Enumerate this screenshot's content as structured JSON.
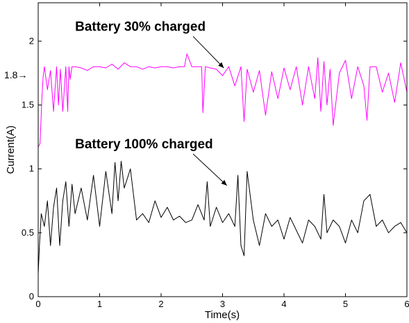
{
  "chart_data": {
    "type": "line",
    "title": "",
    "xlabel": "Time(s)",
    "ylabel": "Current(A)",
    "xlim": [
      0,
      6
    ],
    "ylim": [
      0,
      2.3
    ],
    "x_ticks": [
      0,
      1,
      2,
      3,
      4,
      5,
      6
    ],
    "x_tick_labels": [
      "0",
      "1",
      "2",
      "3",
      "4",
      "5",
      "6"
    ],
    "y_ticks": [
      0,
      0.5,
      1,
      1.5,
      2
    ],
    "y_tick_labels": [
      "0",
      "0.5",
      "1",
      "1.5",
      "2"
    ],
    "grid": false,
    "legend": "none",
    "reference_mark": {
      "value": 1.8,
      "label": "1.8→"
    },
    "annotations": [
      {
        "text": "Battery 30% charged",
        "text_x": 0.6,
        "text_y": 2.08,
        "arrow_to_x": 3.02,
        "arrow_to_y": 1.79
      },
      {
        "text": "Battery 100% charged",
        "text_x": 0.6,
        "text_y": 1.16,
        "arrow_to_x": 3.07,
        "arrow_to_y": 0.87
      }
    ],
    "series": [
      {
        "color": "#ff00ff",
        "x": [
          0,
          0.03,
          0.06,
          0.08,
          0.1,
          0.15,
          0.2,
          0.25,
          0.3,
          0.33,
          0.36,
          0.4,
          0.45,
          0.48,
          0.5,
          0.52,
          0.55,
          0.6,
          0.7,
          0.8,
          0.9,
          1.0,
          1.1,
          1.2,
          1.3,
          1.4,
          1.5,
          1.6,
          1.7,
          1.8,
          1.9,
          2.0,
          2.1,
          2.2,
          2.3,
          2.38,
          2.42,
          2.5,
          2.6,
          2.66,
          2.68,
          2.72,
          2.8,
          2.9,
          3.0,
          3.1,
          3.2,
          3.3,
          3.35,
          3.4,
          3.5,
          3.6,
          3.7,
          3.8,
          3.9,
          4.0,
          4.1,
          4.2,
          4.3,
          4.4,
          4.5,
          4.55,
          4.6,
          4.65,
          4.7,
          4.75,
          4.8,
          4.9,
          5.0,
          5.1,
          5.2,
          5.3,
          5.35,
          5.4,
          5.5,
          5.6,
          5.7,
          5.8,
          5.9,
          6.0
        ],
        "y": [
          1.17,
          1.2,
          1.55,
          1.72,
          1.8,
          1.62,
          1.77,
          1.45,
          1.8,
          1.5,
          1.78,
          1.45,
          1.8,
          1.45,
          1.8,
          1.7,
          1.8,
          1.8,
          1.79,
          1.77,
          1.8,
          1.8,
          1.79,
          1.82,
          1.78,
          1.83,
          1.8,
          1.8,
          1.78,
          1.8,
          1.79,
          1.8,
          1.8,
          1.79,
          1.8,
          1.8,
          1.9,
          1.8,
          1.8,
          1.8,
          1.44,
          1.8,
          1.79,
          1.78,
          1.73,
          1.8,
          1.65,
          1.8,
          1.37,
          1.78,
          1.6,
          1.77,
          1.42,
          1.76,
          1.55,
          1.79,
          1.62,
          1.8,
          1.5,
          1.8,
          1.55,
          1.87,
          1.45,
          1.84,
          1.5,
          1.78,
          1.34,
          1.75,
          1.85,
          1.55,
          1.8,
          1.65,
          1.38,
          1.8,
          1.8,
          1.6,
          1.75,
          1.52,
          1.83,
          1.6
        ]
      },
      {
        "color": "#000000",
        "x": [
          0,
          0.02,
          0.05,
          0.1,
          0.15,
          0.2,
          0.25,
          0.3,
          0.35,
          0.4,
          0.45,
          0.5,
          0.55,
          0.6,
          0.7,
          0.8,
          0.9,
          1.0,
          1.1,
          1.2,
          1.25,
          1.3,
          1.35,
          1.4,
          1.5,
          1.6,
          1.7,
          1.8,
          1.9,
          2.0,
          2.1,
          2.2,
          2.3,
          2.4,
          2.5,
          2.6,
          2.7,
          2.75,
          2.8,
          2.9,
          3.0,
          3.1,
          3.2,
          3.25,
          3.3,
          3.35,
          3.4,
          3.5,
          3.6,
          3.7,
          3.8,
          3.9,
          4.0,
          4.1,
          4.2,
          4.3,
          4.4,
          4.5,
          4.6,
          4.65,
          4.7,
          4.8,
          4.9,
          5.0,
          5.1,
          5.2,
          5.3,
          5.4,
          5.5,
          5.6,
          5.7,
          5.8,
          5.9,
          6.0
        ],
        "y": [
          0.18,
          0.4,
          0.65,
          0.55,
          0.75,
          0.4,
          0.7,
          0.85,
          0.4,
          0.75,
          0.9,
          0.55,
          0.88,
          0.65,
          0.85,
          0.6,
          0.95,
          0.55,
          0.98,
          0.65,
          1.05,
          0.75,
          1.06,
          0.85,
          1.0,
          0.6,
          0.65,
          0.58,
          0.75,
          0.62,
          0.7,
          0.6,
          0.63,
          0.58,
          0.6,
          0.72,
          0.6,
          0.9,
          0.55,
          0.7,
          0.58,
          0.65,
          0.55,
          0.95,
          0.4,
          0.32,
          0.98,
          0.6,
          0.4,
          0.65,
          0.55,
          0.6,
          0.45,
          0.62,
          0.52,
          0.42,
          0.6,
          0.55,
          0.45,
          0.8,
          0.5,
          0.6,
          0.55,
          0.42,
          0.6,
          0.5,
          0.75,
          0.8,
          0.55,
          0.6,
          0.5,
          0.55,
          0.58,
          0.5
        ]
      }
    ]
  }
}
